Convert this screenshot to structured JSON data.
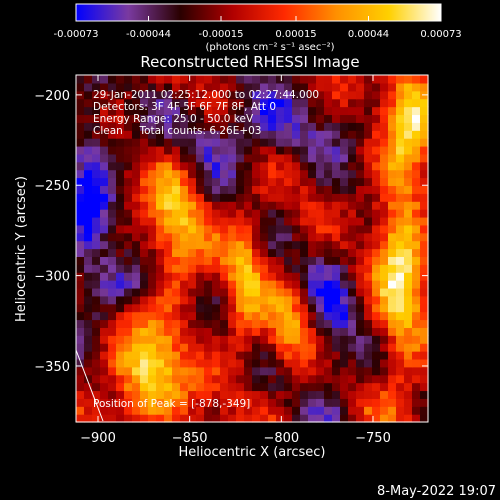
{
  "chart_data": {
    "type": "heatmap",
    "title": "Reconstructed RHESSI Image",
    "xlabel": "Heliocentric X (arcsec)",
    "ylabel": "Heliocentric Y (arcsec)",
    "xlim": [
      -912,
      -720
    ],
    "ylim": [
      -381,
      -189
    ],
    "xticks": [
      -900,
      -850,
      -800,
      -750
    ],
    "yticks": [
      -350,
      -300,
      -250,
      -200
    ],
    "colorbar": {
      "label": "(photons cm⁻² s⁻¹ asec⁻²)",
      "range": [
        -0.00073,
        0.00073
      ],
      "tick_values": [
        -0.00073,
        -0.00044,
        -0.00015,
        0.00015,
        0.00044,
        0.00073
      ],
      "tick_labels": [
        "-0.00073",
        "-0.00044",
        "-0.00015",
        "0.00015",
        "0.00044",
        "0.00073"
      ],
      "colors": [
        "#0000ff",
        "#7a3aa0",
        "#2a0000",
        "#b00000",
        "#ff2a00",
        "#ff9000",
        "#ffd000",
        "#ffffff"
      ]
    },
    "info_lines": [
      "29-Jan-2011 02:25:12.000 to 02:27:44.000",
      "Detectors: 3F 4F 5F 6F 7F 8F, Att 0",
      "Energy Range: 25.0 - 50.0 keV",
      "Clean     Total counts: 6.26E+03"
    ],
    "annotation": "Position of Peak = [-878,-349]",
    "peak": [
      -878,
      -349
    ],
    "grid": false,
    "sources": [
      {
        "x": -872,
        "y": -355,
        "amp": 0.00073,
        "sx": 13,
        "sy": 20
      },
      {
        "x": -858,
        "y": -270,
        "amp": 0.00055,
        "sx": 10,
        "sy": 28
      },
      {
        "x": -820,
        "y": -300,
        "amp": 0.00045,
        "sx": 7,
        "sy": 30
      },
      {
        "x": -795,
        "y": -330,
        "amp": 0.0004,
        "sx": 8,
        "sy": 16
      },
      {
        "x": -735,
        "y": -290,
        "amp": 0.00068,
        "sx": 9,
        "sy": 48
      },
      {
        "x": -728,
        "y": -205,
        "amp": 0.0006,
        "sx": 8,
        "sy": 18
      },
      {
        "x": -905,
        "y": -260,
        "amp": -0.00055,
        "sx": 10,
        "sy": 40
      },
      {
        "x": -820,
        "y": -220,
        "amp": -0.0004,
        "sx": 35,
        "sy": 18
      },
      {
        "x": -772,
        "y": -330,
        "amp": -0.0004,
        "sx": 10,
        "sy": 40
      },
      {
        "x": -885,
        "y": -305,
        "amp": -0.00035,
        "sx": 12,
        "sy": 10
      }
    ]
  },
  "footer": {
    "timestamp": "8-May-2022 19:07"
  }
}
